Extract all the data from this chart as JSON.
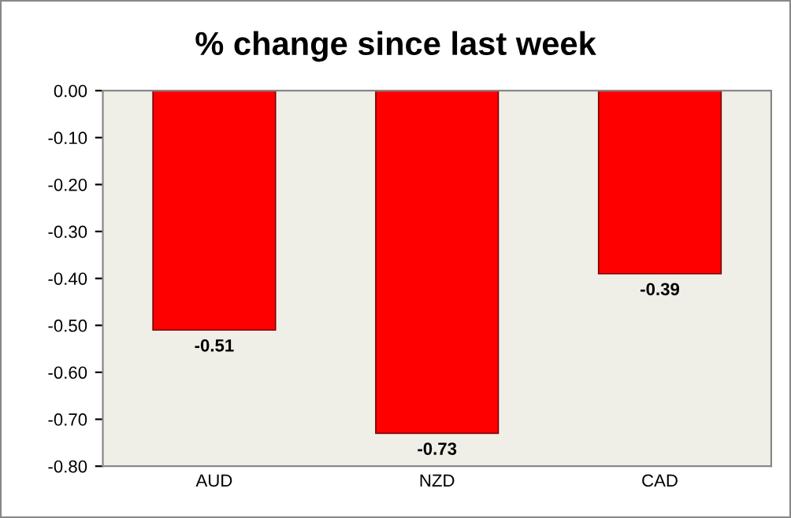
{
  "chart_data": {
    "type": "bar",
    "title": "% change since last week",
    "categories": [
      "AUD",
      "NZD",
      "CAD"
    ],
    "values": [
      -0.51,
      -0.73,
      -0.39
    ],
    "color": "#ff0000",
    "data_labels": true,
    "ylim": [
      -0.8,
      0
    ],
    "yticks": [
      {
        "value": 0,
        "label": "0.00"
      },
      {
        "value": -0.1,
        "label": "-0.10"
      },
      {
        "value": -0.2,
        "label": "-0.20"
      },
      {
        "value": -0.3,
        "label": "-0.30"
      },
      {
        "value": -0.4,
        "label": "-0.40"
      },
      {
        "value": -0.5,
        "label": "-0.50"
      },
      {
        "value": -0.6,
        "label": "-0.60"
      },
      {
        "value": -0.7,
        "label": "-0.70"
      },
      {
        "value": -0.8,
        "label": "-0.80"
      }
    ],
    "grid": false,
    "legend": false
  }
}
